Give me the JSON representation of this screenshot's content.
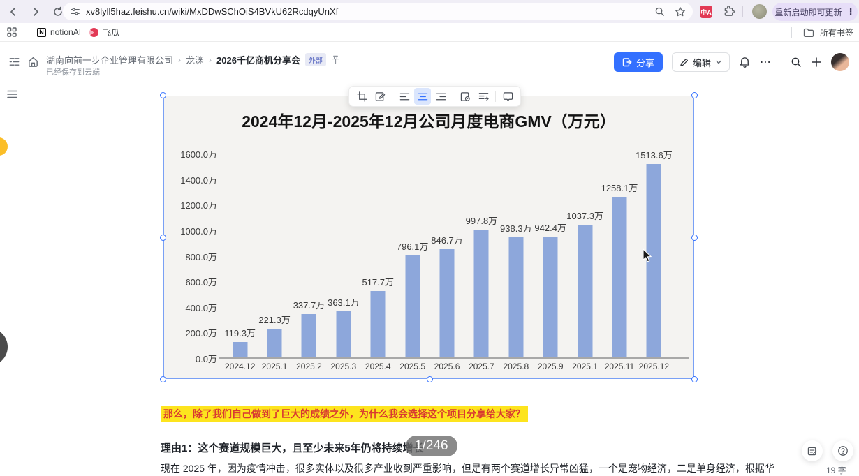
{
  "browser": {
    "url": "xv8lyll5haz.feishu.cn/wiki/MxDDwSChOiS4BVkU62RcdqyUnXf",
    "update_button": "重新启动即可更新",
    "translate_ext_label": "中A",
    "bookmarks": [
      {
        "label": "notionAI"
      },
      {
        "label": "飞瓜"
      }
    ],
    "all_bookmarks_label": "所有书签"
  },
  "doc_header": {
    "breadcrumb": [
      "湖南向前一步企业管理有限公司",
      "龙渊",
      "2026千亿商机分享会"
    ],
    "external_badge": "外部",
    "save_status": "已经保存到云端",
    "share_button": "分享",
    "edit_button": "编辑"
  },
  "chart_data": {
    "type": "bar",
    "title": "2024年12月-2025年12月公司月度电商GMV（万元）",
    "categories": [
      "2024.12",
      "2025.1",
      "2025.2",
      "2025.3",
      "2025.4",
      "2025.5",
      "2025.6",
      "2025.7",
      "2025.8",
      "2025.9",
      "2025.1",
      "2025.11",
      "2025.12"
    ],
    "values": [
      119.3,
      221.3,
      337.7,
      363.1,
      517.7,
      796.1,
      846.7,
      997.8,
      938.3,
      942.4,
      1037.3,
      1258.1,
      1513.6
    ],
    "unit": "万",
    "xlabel": "",
    "ylabel": "",
    "ylim": [
      0,
      1600
    ],
    "ytick_step": 200,
    "grid": false,
    "legend": "none",
    "bar_color": "#8da7db"
  },
  "content": {
    "highlight_text": "那么，除了我们自己做到了巨大的成绩之外，为什么我会选择这个项目分享给大家？",
    "reason_heading": "理由1：这个赛道规模巨大，且至少未来5年仍将持续增长",
    "page_indicator": "1/246",
    "body_text": "现在 2025 年，因为疫情冲击，很多实体以及很多产业收到严重影响，但是有两个赛道增长异常凶猛，一个是宠物经济，二是单身经济，根据华",
    "word_count": "19 字"
  },
  "colors": {
    "accent_blue": "#3370ff",
    "bar_blue": "#8da7db",
    "highlight_yellow": "#fde41e",
    "highlight_text_red": "#d83931",
    "update_pill_bg": "#e7def8"
  }
}
